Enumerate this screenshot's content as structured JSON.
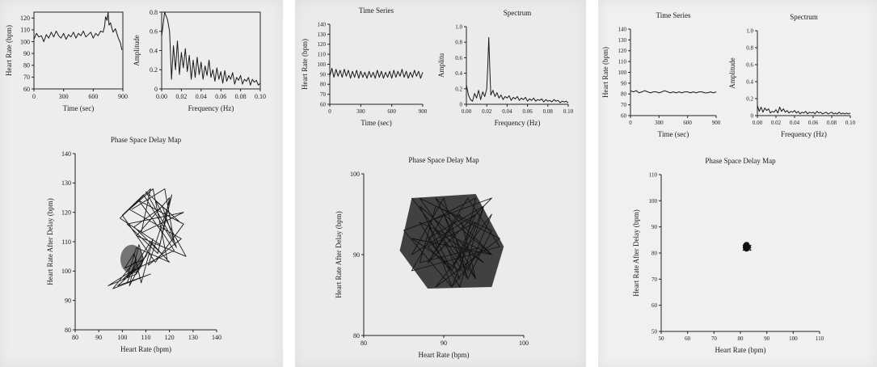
{
  "chart_data": [
    {
      "type": "line",
      "title": "",
      "xlabel": "Time (sec)",
      "ylabel": "Heart Rate (bpm)",
      "xlim": [
        0,
        900
      ],
      "ylim": [
        60,
        125
      ],
      "xticks": [
        "0",
        "300",
        "600",
        "900"
      ],
      "yticks": [
        "60",
        "70",
        "80",
        "90",
        "100",
        "110",
        "120"
      ],
      "x": [
        0,
        25,
        50,
        75,
        100,
        125,
        150,
        175,
        200,
        225,
        250,
        275,
        300,
        325,
        350,
        375,
        400,
        425,
        450,
        475,
        500,
        525,
        550,
        575,
        600,
        625,
        650,
        675,
        700,
        715,
        725,
        740,
        750,
        760,
        775,
        800,
        825,
        850,
        875,
        890
      ],
      "values": [
        102,
        107,
        104,
        105,
        100,
        106,
        103,
        108,
        104,
        109,
        105,
        103,
        107,
        102,
        106,
        104,
        108,
        103,
        107,
        105,
        109,
        104,
        106,
        108,
        103,
        107,
        105,
        109,
        108,
        113,
        121,
        118,
        125,
        114,
        116,
        108,
        111,
        104,
        99,
        93
      ]
    },
    {
      "type": "line",
      "title": "",
      "xlabel": "Frequency (Hz)",
      "ylabel": "Amplitude",
      "xlim": [
        0,
        0.1
      ],
      "ylim": [
        0,
        0.8
      ],
      "xticks": [
        "0.00",
        "0.02",
        "0.04",
        "0.06",
        "0.08",
        "0.10"
      ],
      "yticks": [
        "0",
        "0.2",
        "0.4",
        "0.6",
        "0.8"
      ],
      "x": [
        0.0,
        0.003,
        0.006,
        0.008,
        0.01,
        0.012,
        0.014,
        0.016,
        0.018,
        0.02,
        0.022,
        0.024,
        0.026,
        0.028,
        0.03,
        0.032,
        0.034,
        0.036,
        0.038,
        0.04,
        0.042,
        0.044,
        0.046,
        0.048,
        0.05,
        0.052,
        0.054,
        0.056,
        0.058,
        0.06,
        0.062,
        0.064,
        0.066,
        0.068,
        0.07,
        0.072,
        0.074,
        0.076,
        0.078,
        0.08,
        0.082,
        0.084,
        0.086,
        0.088,
        0.09,
        0.092,
        0.094,
        0.096,
        0.098,
        0.1
      ],
      "values": [
        0.55,
        0.8,
        0.72,
        0.6,
        0.1,
        0.45,
        0.2,
        0.5,
        0.15,
        0.38,
        0.22,
        0.42,
        0.18,
        0.35,
        0.1,
        0.3,
        0.12,
        0.33,
        0.15,
        0.28,
        0.1,
        0.24,
        0.14,
        0.3,
        0.12,
        0.2,
        0.08,
        0.22,
        0.1,
        0.18,
        0.06,
        0.19,
        0.08,
        0.14,
        0.1,
        0.17,
        0.05,
        0.12,
        0.09,
        0.14,
        0.05,
        0.1,
        0.08,
        0.12,
        0.04,
        0.1,
        0.07,
        0.09,
        0.04,
        0.06
      ]
    },
    {
      "type": "line",
      "title": "Phase Space Delay Map",
      "xlabel": "Heart Rate (bpm)",
      "ylabel": "Heart Rate After Delay (bpm)",
      "xlim": [
        80,
        140
      ],
      "ylim": [
        80,
        140
      ],
      "xticks": [
        "80",
        "90",
        "100",
        "110",
        "120",
        "130",
        "140"
      ],
      "yticks": [
        "80",
        "90",
        "100",
        "110",
        "120",
        "130",
        "140"
      ],
      "x": [
        104,
        118,
        122,
        110,
        124,
        114,
        127,
        106,
        120,
        116,
        99,
        112,
        108,
        126,
        102,
        115,
        121,
        111,
        125,
        103,
        113,
        119,
        105,
        117,
        123,
        109,
        100,
        114,
        126,
        107,
        118,
        122,
        104,
        112,
        120,
        106,
        102,
        110,
        113,
        108,
        105,
        101,
        109,
        107,
        103,
        111,
        106,
        94,
        104,
        100,
        108,
        98,
        112,
        96,
        106,
        102
      ],
      "values": [
        121,
        128,
        110,
        127,
        117,
        124,
        105,
        112,
        125,
        109,
        118,
        128,
        113,
        120,
        116,
        106,
        126,
        102,
        111,
        121,
        128,
        104,
        115,
        122,
        108,
        126,
        119,
        103,
        116,
        124,
        112,
        107,
        100,
        110,
        103,
        108,
        98,
        105,
        111,
        96,
        106,
        101,
        104,
        109,
        95,
        107,
        99,
        95,
        100,
        97,
        102,
        95,
        99,
        94,
        104,
        96
      ]
    },
    {
      "type": "line",
      "title": "Time Series",
      "xlabel": "Time (sec)",
      "ylabel": "Heart Rate (bpm)",
      "xlim": [
        0,
        900
      ],
      "ylim": [
        60,
        140
      ],
      "xticks": [
        "0",
        "300",
        "600",
        "900"
      ],
      "yticks": [
        "60",
        "70",
        "80",
        "90",
        "100",
        "110",
        "120",
        "130",
        "140"
      ],
      "x": [
        0,
        20,
        40,
        60,
        80,
        100,
        120,
        140,
        160,
        180,
        200,
        220,
        240,
        260,
        280,
        300,
        320,
        340,
        360,
        380,
        400,
        420,
        440,
        460,
        480,
        500,
        520,
        540,
        560,
        580,
        600,
        620,
        640,
        660,
        680,
        700,
        720,
        740,
        760,
        780,
        800,
        820,
        840,
        860,
        880,
        900
      ],
      "values": [
        88,
        96,
        87,
        95,
        88,
        94,
        87,
        95,
        88,
        94,
        86,
        93,
        87,
        94,
        86,
        93,
        87,
        92,
        86,
        93,
        87,
        92,
        86,
        94,
        87,
        93,
        86,
        92,
        87,
        93,
        86,
        94,
        87,
        93,
        88,
        95,
        87,
        93,
        86,
        92,
        87,
        94,
        88,
        93,
        86,
        92
      ]
    },
    {
      "type": "line",
      "title": "Spectrum",
      "xlabel": "Frequency (Hz)",
      "ylabel": "Amplitu",
      "xlim": [
        0,
        0.1
      ],
      "ylim": [
        0,
        1.0
      ],
      "xticks": [
        "0.00",
        "0.02",
        "0.04",
        "0.06",
        "0.08",
        "0.10"
      ],
      "yticks": [
        "0",
        "0.2",
        "0.4",
        "0.6",
        "0.8",
        "1.0"
      ],
      "x": [
        0.0,
        0.002,
        0.004,
        0.006,
        0.008,
        0.01,
        0.012,
        0.014,
        0.016,
        0.018,
        0.02,
        0.021,
        0.022,
        0.023,
        0.024,
        0.026,
        0.028,
        0.03,
        0.032,
        0.034,
        0.036,
        0.038,
        0.04,
        0.042,
        0.044,
        0.046,
        0.048,
        0.05,
        0.052,
        0.054,
        0.056,
        0.058,
        0.06,
        0.062,
        0.064,
        0.066,
        0.068,
        0.07,
        0.072,
        0.074,
        0.076,
        0.078,
        0.08,
        0.082,
        0.084,
        0.086,
        0.088,
        0.09,
        0.092,
        0.094,
        0.096,
        0.098,
        0.1
      ],
      "values": [
        0.25,
        0.12,
        0.06,
        0.04,
        0.14,
        0.08,
        0.18,
        0.06,
        0.16,
        0.1,
        0.2,
        0.5,
        0.86,
        0.45,
        0.12,
        0.18,
        0.1,
        0.15,
        0.08,
        0.12,
        0.06,
        0.1,
        0.08,
        0.11,
        0.05,
        0.09,
        0.07,
        0.1,
        0.05,
        0.08,
        0.06,
        0.09,
        0.04,
        0.07,
        0.05,
        0.08,
        0.04,
        0.06,
        0.05,
        0.07,
        0.03,
        0.06,
        0.04,
        0.05,
        0.03,
        0.06,
        0.04,
        0.05,
        0.02,
        0.04,
        0.03,
        0.04,
        0.02
      ]
    },
    {
      "type": "line",
      "title": "Phase Space Delay Map",
      "xlabel": "Heart Rate (bpm)",
      "ylabel": "Heart Rate After Delay (bpm)",
      "xlim": [
        80,
        100
      ],
      "ylim": [
        80,
        100
      ],
      "xticks": [
        "80",
        "90",
        "100"
      ],
      "yticks": [
        "80",
        "90",
        "100"
      ],
      "x": [
        86,
        93,
        96,
        89,
        97,
        87,
        94,
        92,
        88,
        96,
        85,
        91,
        95,
        88,
        93,
        97,
        86,
        90,
        94,
        89,
        96,
        87,
        92,
        95,
        88,
        91,
        94,
        86,
        90,
        93,
        96,
        89,
        87,
        95,
        91,
        88,
        94,
        92,
        86,
        96,
        90,
        93,
        89,
        95,
        87,
        91,
        94,
        88,
        92,
        90
      ],
      "values": [
        97,
        88,
        95,
        86,
        92,
        97,
        87,
        95,
        89,
        97,
        93,
        86,
        96,
        89,
        97,
        91,
        88,
        95,
        87,
        97,
        90,
        94,
        86,
        96,
        92,
        88,
        95,
        90,
        97,
        87,
        93,
        96,
        89,
        91,
        86,
        94,
        97,
        88,
        92,
        90,
        95,
        87,
        93,
        89,
        96,
        88,
        94,
        91,
        87,
        92
      ]
    },
    {
      "type": "line",
      "title": "Time Series",
      "xlabel": "Time (sec)",
      "ylabel": "Heart Rate (bpm)",
      "xlim": [
        0,
        900
      ],
      "ylim": [
        60,
        140
      ],
      "xticks": [
        "0",
        "300",
        "600",
        "900"
      ],
      "yticks": [
        "60",
        "70",
        "80",
        "90",
        "100",
        "110",
        "120",
        "130",
        "140"
      ],
      "x": [
        0,
        30,
        60,
        90,
        120,
        150,
        180,
        210,
        240,
        270,
        300,
        330,
        360,
        390,
        420,
        450,
        480,
        510,
        540,
        570,
        600,
        630,
        660,
        690,
        720,
        750,
        780,
        810,
        840,
        870,
        900
      ],
      "values": [
        83,
        82,
        83,
        81,
        82,
        83,
        82,
        81,
        82,
        82,
        81,
        82,
        83,
        82,
        81,
        82,
        81,
        82,
        81,
        82,
        82,
        81,
        82,
        81,
        82,
        82,
        81,
        81,
        82,
        81,
        82
      ]
    },
    {
      "type": "line",
      "title": "Spectrum",
      "xlabel": "Frequency (Hz)",
      "ylabel": "Amplitude",
      "xlim": [
        0,
        0.1
      ],
      "ylim": [
        0,
        1.0
      ],
      "xticks": [
        "0.00",
        "0.02",
        "0.04",
        "0.06",
        "0.08",
        "0.10"
      ],
      "yticks": [
        "0",
        "0.2",
        "0.4",
        "0.6",
        "0.8",
        "1.0"
      ],
      "x": [
        0.0,
        0.002,
        0.004,
        0.006,
        0.008,
        0.01,
        0.012,
        0.014,
        0.016,
        0.018,
        0.02,
        0.022,
        0.024,
        0.026,
        0.028,
        0.03,
        0.032,
        0.034,
        0.036,
        0.038,
        0.04,
        0.042,
        0.044,
        0.046,
        0.048,
        0.05,
        0.052,
        0.054,
        0.056,
        0.058,
        0.06,
        0.062,
        0.064,
        0.066,
        0.068,
        0.07,
        0.072,
        0.074,
        0.076,
        0.078,
        0.08,
        0.082,
        0.084,
        0.086,
        0.088,
        0.09,
        0.092,
        0.094,
        0.096,
        0.098,
        0.1
      ],
      "values": [
        0.12,
        0.05,
        0.1,
        0.04,
        0.09,
        0.06,
        0.08,
        0.03,
        0.05,
        0.04,
        0.07,
        0.03,
        0.1,
        0.05,
        0.08,
        0.04,
        0.06,
        0.03,
        0.05,
        0.04,
        0.06,
        0.03,
        0.05,
        0.02,
        0.04,
        0.03,
        0.05,
        0.02,
        0.04,
        0.03,
        0.04,
        0.02,
        0.05,
        0.03,
        0.04,
        0.02,
        0.03,
        0.04,
        0.02,
        0.03,
        0.04,
        0.02,
        0.03,
        0.02,
        0.04,
        0.02,
        0.03,
        0.02,
        0.03,
        0.02,
        0.03
      ]
    },
    {
      "type": "line",
      "title": "Phase Space Delay Map",
      "xlabel": "Heart Rate (bpm)",
      "ylabel": "Heart Rate After Delay (bpm)",
      "xlim": [
        50,
        110
      ],
      "ylim": [
        50,
        110
      ],
      "xticks": [
        "50",
        "60",
        "70",
        "80",
        "90",
        "100",
        "110"
      ],
      "yticks": [
        "50",
        "60",
        "70",
        "80",
        "90",
        "100",
        "110"
      ],
      "x": [
        81,
        83,
        82,
        84,
        81,
        83,
        82,
        81,
        84,
        82,
        83,
        81,
        82,
        84,
        83,
        81,
        82,
        83
      ],
      "values": [
        83,
        82,
        84,
        81,
        82,
        84,
        83,
        81,
        82,
        84,
        81,
        83,
        82,
        83,
        81,
        82,
        84,
        82
      ]
    }
  ]
}
